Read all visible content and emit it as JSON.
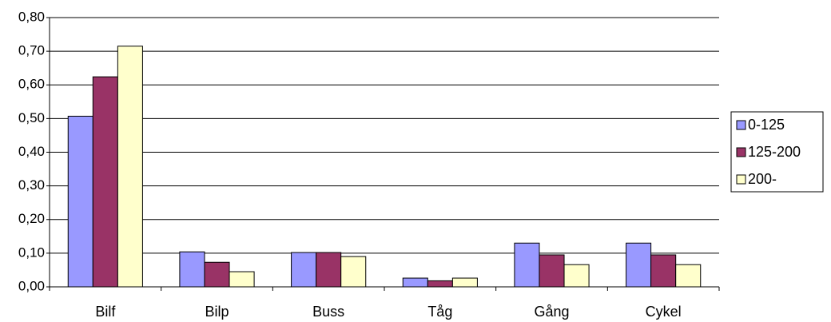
{
  "chart_data": {
    "type": "bar",
    "categories": [
      "Bilf",
      "Bilp",
      "Buss",
      "Tåg",
      "Gång",
      "Cykel"
    ],
    "series": [
      {
        "name": "0-125",
        "color": "#9999ff",
        "values": [
          0.507,
          0.104,
          0.102,
          0.026,
          0.13,
          0.13
        ]
      },
      {
        "name": "125-200",
        "color": "#993366",
        "values": [
          0.624,
          0.073,
          0.102,
          0.018,
          0.095,
          0.095
        ]
      },
      {
        "name": "200-",
        "color": "#ffffcc",
        "values": [
          0.715,
          0.045,
          0.09,
          0.026,
          0.066,
          0.066
        ]
      }
    ],
    "ylim": [
      0,
      0.8
    ],
    "yticks": [
      {
        "value": 0,
        "label": "0,00"
      },
      {
        "value": 0.1,
        "label": "0,10"
      },
      {
        "value": 0.2,
        "label": "0,20"
      },
      {
        "value": 0.3,
        "label": "0,30"
      },
      {
        "value": 0.4,
        "label": "0,40"
      },
      {
        "value": 0.5,
        "label": "0,50"
      },
      {
        "value": 0.6,
        "label": "0,60"
      },
      {
        "value": 0.7,
        "label": "0,70"
      },
      {
        "value": 0.8,
        "label": "0,80"
      }
    ],
    "grid": true,
    "legend": "right"
  }
}
